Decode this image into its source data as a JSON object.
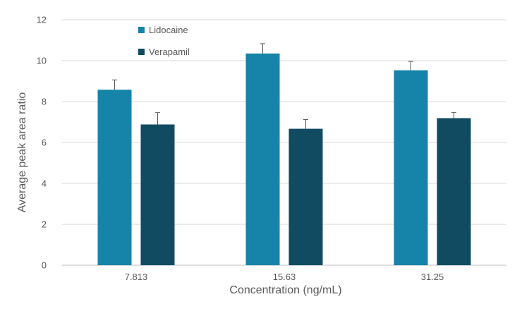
{
  "chart_data": {
    "type": "bar",
    "title": "",
    "xlabel": "Concentration (ng/mL)",
    "ylabel": "Average peak area ratio",
    "categories": [
      "7.813",
      "15.63",
      "31.25"
    ],
    "ylim": [
      0,
      12
    ],
    "yticks": [
      0,
      2,
      4,
      6,
      8,
      10,
      12
    ],
    "grid": true,
    "legend_position": "top-left",
    "series": [
      {
        "name": "Lidocaine",
        "color": "#1683a8",
        "values": [
          8.58,
          10.35,
          9.53
        ],
        "errors": [
          0.48,
          0.48,
          0.43
        ]
      },
      {
        "name": "Verapamil",
        "color": "#114b62",
        "values": [
          6.88,
          6.67,
          7.19
        ],
        "errors": [
          0.58,
          0.45,
          0.28
        ]
      }
    ]
  }
}
